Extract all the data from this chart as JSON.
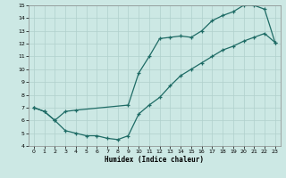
{
  "xlabel": "Humidex (Indice chaleur)",
  "xlim": [
    -0.5,
    23.5
  ],
  "ylim": [
    4,
    15
  ],
  "xticks": [
    0,
    1,
    2,
    3,
    4,
    5,
    6,
    7,
    8,
    9,
    10,
    11,
    12,
    13,
    14,
    15,
    16,
    17,
    18,
    19,
    20,
    21,
    22,
    23
  ],
  "yticks": [
    4,
    5,
    6,
    7,
    8,
    9,
    10,
    11,
    12,
    13,
    14,
    15
  ],
  "bg_color": "#cce8e4",
  "line_color": "#1e6b65",
  "upper_x": [
    0,
    1,
    2,
    3,
    4,
    9,
    10,
    11,
    12,
    13,
    14,
    15,
    16,
    17,
    18,
    19,
    20,
    21,
    22,
    23
  ],
  "upper_y": [
    7.0,
    6.7,
    6.0,
    6.7,
    6.8,
    7.2,
    9.7,
    11.0,
    12.4,
    12.5,
    12.6,
    12.5,
    13.0,
    13.8,
    14.2,
    14.5,
    15.0,
    15.0,
    14.7,
    12.1
  ],
  "lower_x": [
    0,
    1,
    2,
    3,
    4,
    5,
    6,
    7,
    8,
    9,
    10,
    11,
    12,
    13,
    14,
    15,
    16,
    17,
    18,
    19,
    20,
    21,
    22,
    23
  ],
  "lower_y": [
    7.0,
    6.7,
    6.0,
    5.2,
    5.0,
    4.8,
    4.8,
    4.6,
    4.5,
    4.8,
    6.5,
    7.2,
    7.8,
    8.7,
    9.5,
    10.0,
    10.5,
    11.0,
    11.5,
    11.8,
    12.2,
    12.5,
    12.8,
    12.1
  ]
}
